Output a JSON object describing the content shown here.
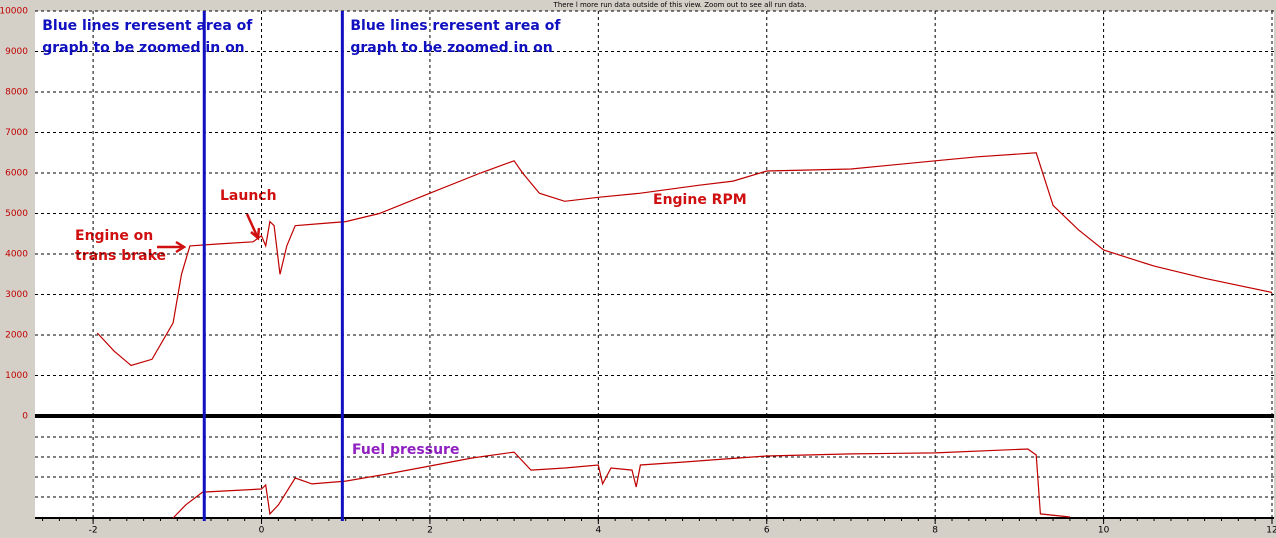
{
  "chart_data": {
    "type": "line",
    "note": "There l more run data outside of this view.  Zoom out to see all run data.",
    "xlim": [
      -2.69,
      12
    ],
    "xticks": [
      -2,
      0,
      2,
      4,
      6,
      8,
      10,
      12
    ],
    "ylim": [
      0,
      10000
    ],
    "yticks": [
      0,
      1000,
      2000,
      3000,
      4000,
      5000,
      6000,
      7000,
      8000,
      9000,
      10000
    ],
    "y2lim": [
      0,
      5
    ],
    "grid": true,
    "series": [
      {
        "name": "Engine RPM",
        "color": "#c00000",
        "x": [
          -1.95,
          -1.75,
          -1.55,
          -1.3,
          -1.05,
          -0.95,
          -0.85,
          -0.5,
          -0.1,
          0,
          0.05,
          0.1,
          0.15,
          0.22,
          0.3,
          0.4,
          0.7,
          1.0,
          1.4,
          2.0,
          2.6,
          3.0,
          3.1,
          3.3,
          3.6,
          4.0,
          4.5,
          5.2,
          5.6,
          6.0,
          7.0,
          8.0,
          8.5,
          9.2,
          9.4,
          9.7,
          10.0,
          10.6,
          11.2,
          12.0
        ],
        "values": [
          2050,
          1600,
          1250,
          1400,
          2300,
          3500,
          4200,
          4250,
          4300,
          4450,
          4200,
          4800,
          4700,
          3500,
          4200,
          4700,
          4750,
          4800,
          5000,
          5500,
          6000,
          6300,
          6000,
          5500,
          5300,
          5400,
          5500,
          5700,
          5800,
          6050,
          6100,
          6300,
          6400,
          6500,
          5200,
          4600,
          4100,
          3700,
          3400,
          3050
        ]
      },
      {
        "name": "Fuel pressure",
        "color": "#c00000",
        "axis": "y2",
        "x": [
          -1.05,
          -0.9,
          -0.7,
          0,
          0.05,
          0.1,
          0.2,
          0.4,
          0.6,
          1.0,
          1.5,
          2.0,
          2.5,
          3.0,
          3.2,
          3.6,
          4.0,
          4.05,
          4.15,
          4.4,
          4.45,
          4.5,
          5.0,
          5.5,
          6.0,
          7.0,
          8.0,
          9.1,
          9.2,
          9.25,
          9.6
        ],
        "values": [
          0,
          0.64,
          1.27,
          1.42,
          1.62,
          0.2,
          0.64,
          1.96,
          1.67,
          1.81,
          2.16,
          2.55,
          2.94,
          3.23,
          2.35,
          2.45,
          2.6,
          1.67,
          2.45,
          2.35,
          1.52,
          2.6,
          2.74,
          2.89,
          3.04,
          3.14,
          3.19,
          3.38,
          3.09,
          0.2,
          0.05
        ]
      }
    ],
    "vlines": [
      {
        "x": -0.68,
        "label": [
          "Blue lines reresent area of",
          "graph to be zoomed in on"
        ]
      },
      {
        "x": 0.96,
        "label": [
          "Blue lines reresent area of",
          "graph to be zoomed in on"
        ]
      }
    ],
    "annotations": {
      "engine_on": [
        "Engine on",
        "trans brake"
      ],
      "launch": "Launch",
      "rpm": "Engine RPM",
      "fuel": "Fuel pressure"
    }
  }
}
